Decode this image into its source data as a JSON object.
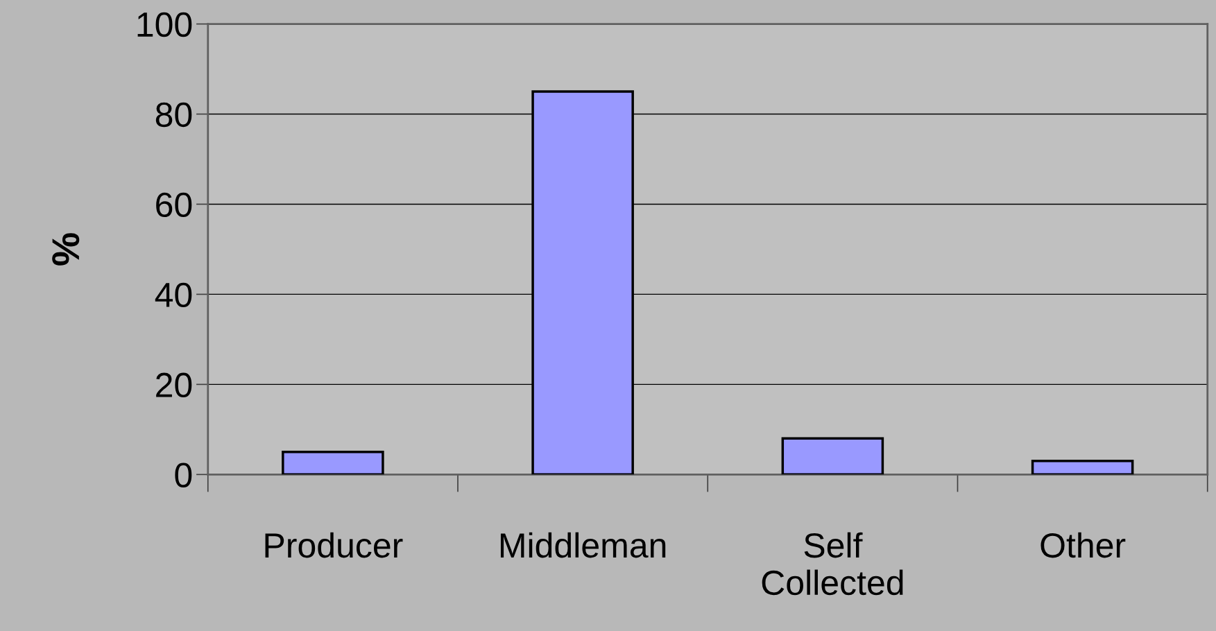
{
  "chart_data": {
    "type": "bar",
    "ylabel": "%",
    "categories": [
      "Producer",
      "Middleman",
      "Self Collected",
      "Other"
    ],
    "values": [
      5,
      85,
      8,
      3
    ],
    "color": "#9999ff",
    "ylim": [
      0,
      100
    ],
    "yticks": [
      0,
      20,
      40,
      60,
      80,
      100
    ],
    "grid": "y",
    "legend": false
  }
}
